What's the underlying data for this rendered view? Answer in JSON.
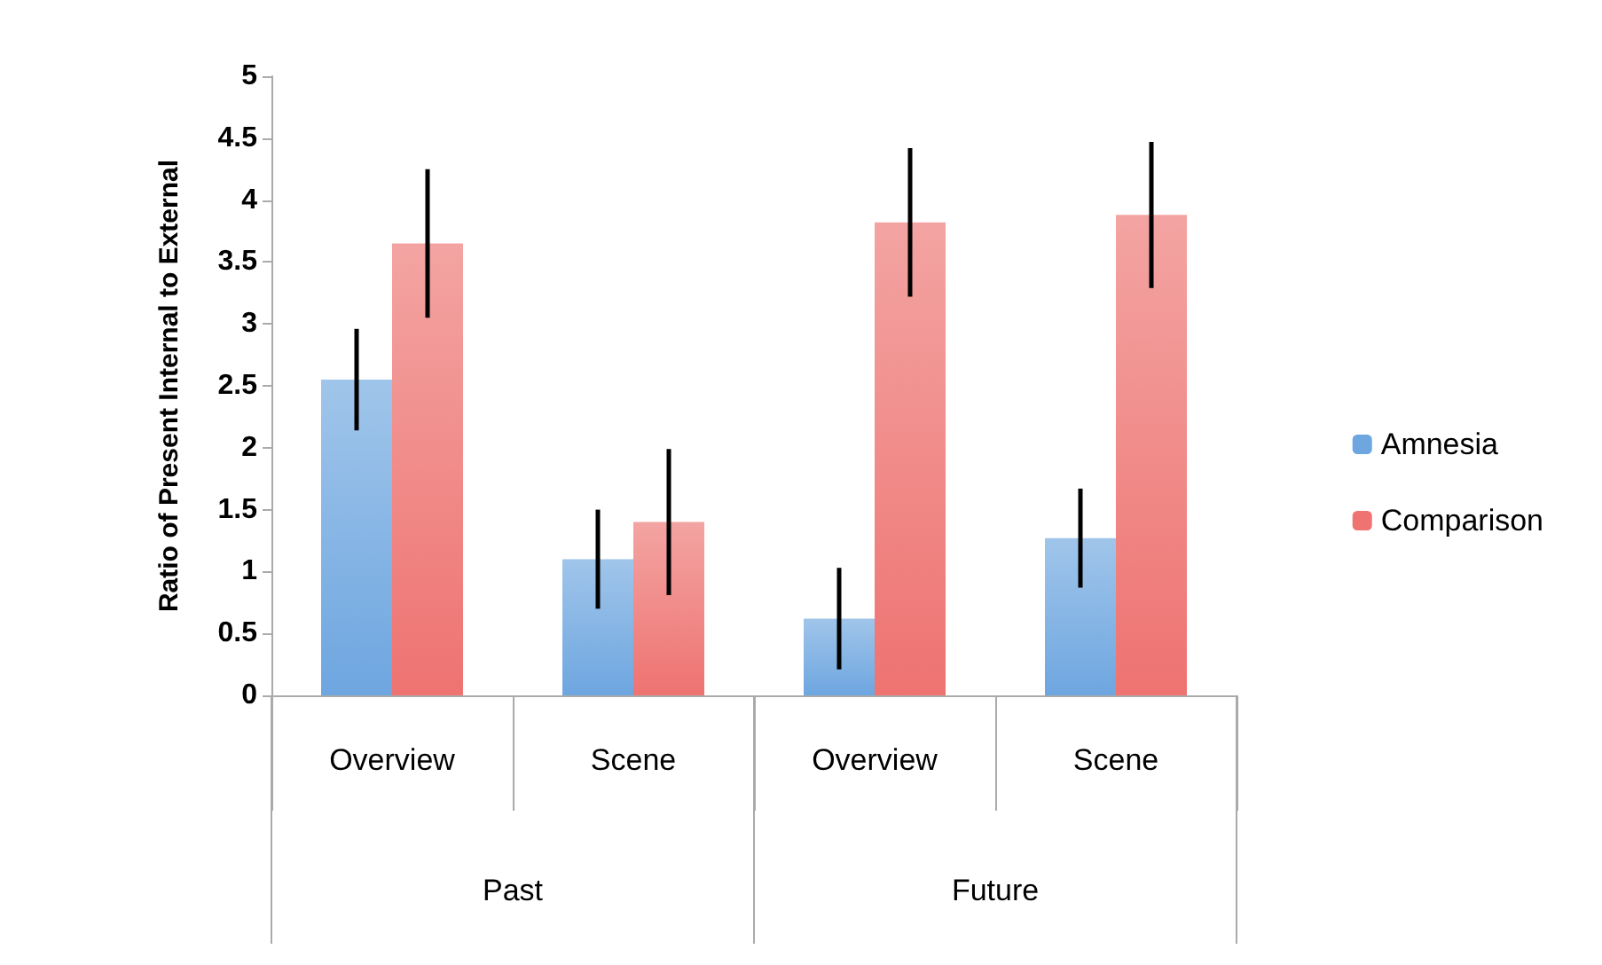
{
  "chart_data": {
    "type": "bar",
    "ylabel": "Ratio of Present Internal to External",
    "categories": [
      "Overview",
      "Scene",
      "Overview",
      "Scene"
    ],
    "annotations": [
      "Past",
      "Future"
    ],
    "series": [
      {
        "name": "Amnesia",
        "color": "#6ea6e0",
        "values": [
          2.55,
          1.1,
          0.62,
          1.27
        ],
        "errors": [
          0.41,
          0.4,
          0.41,
          0.4
        ]
      },
      {
        "name": "Comparison",
        "color": "#ee7371",
        "values": [
          3.65,
          1.4,
          3.82,
          3.88
        ],
        "errors": [
          0.6,
          0.59,
          0.6,
          0.59
        ]
      }
    ],
    "ylim": [
      0,
      5
    ],
    "yticks": [
      0,
      0.5,
      1,
      1.5,
      2,
      2.5,
      3,
      3.5,
      4,
      4.5,
      5
    ],
    "grid": false,
    "legend": "right"
  }
}
